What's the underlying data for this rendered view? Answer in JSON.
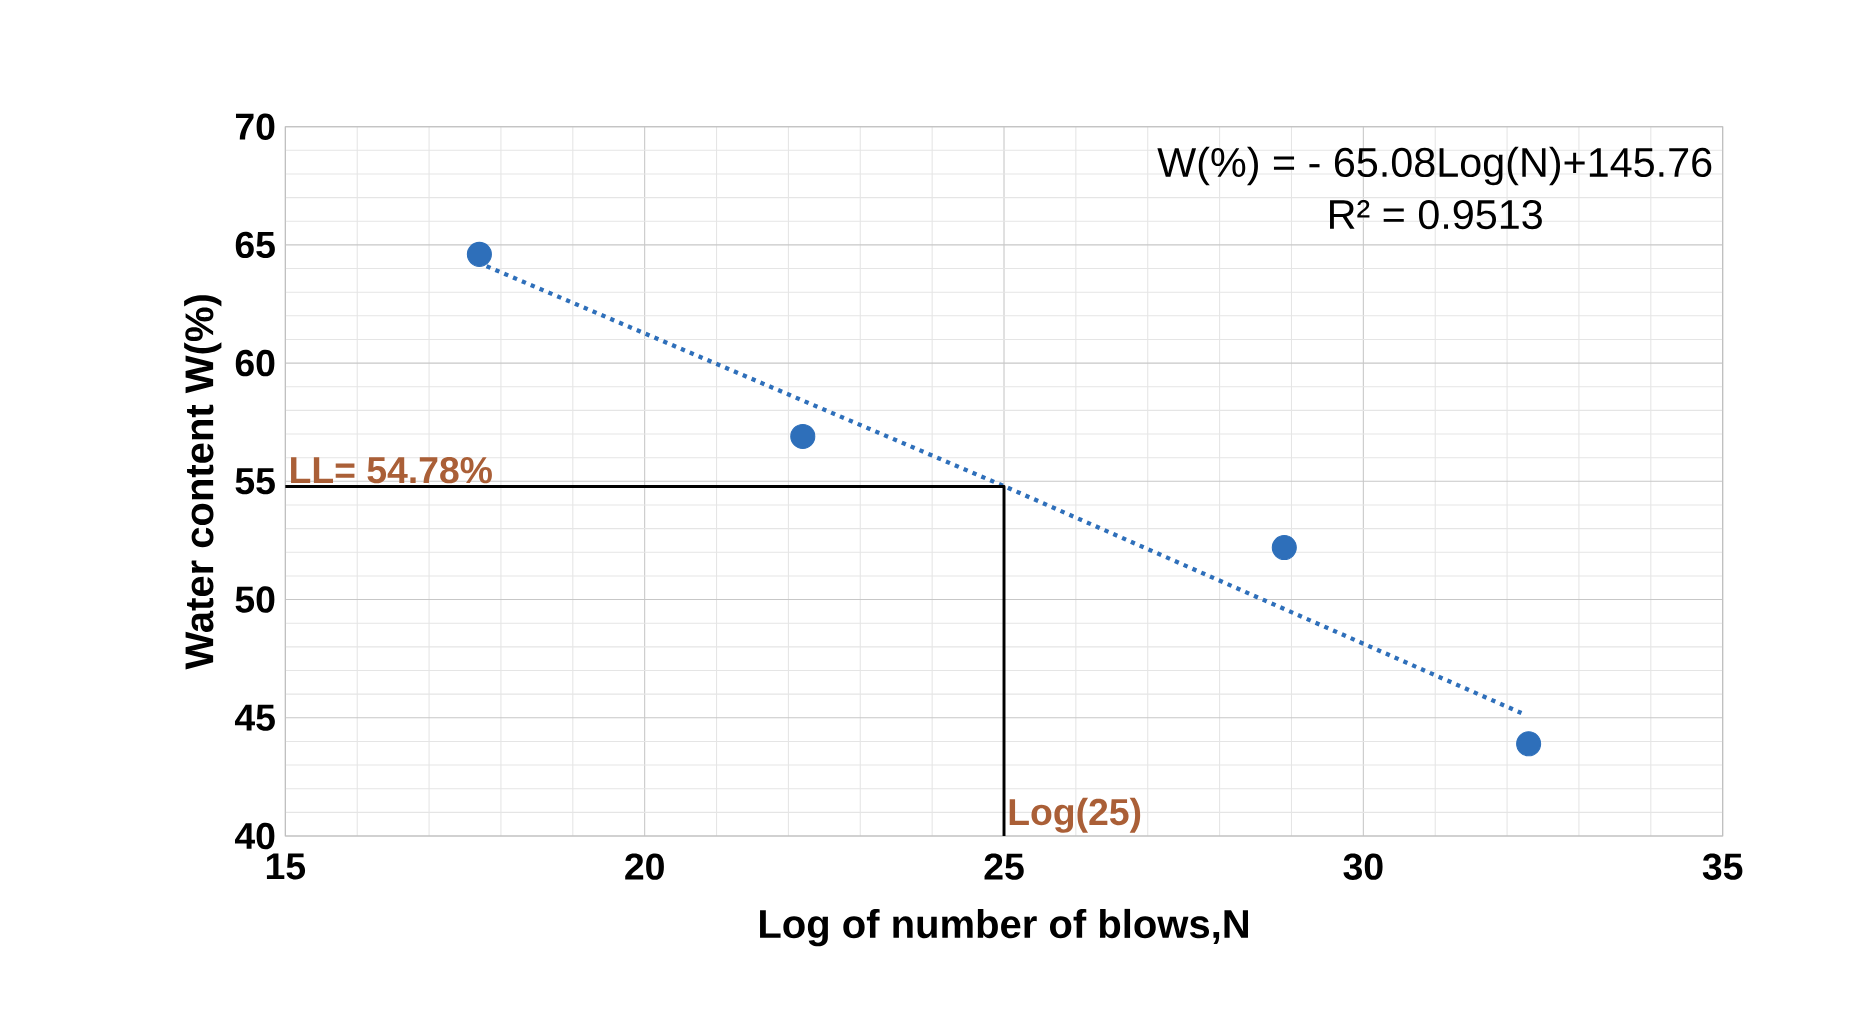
{
  "chart_data": {
    "type": "scatter",
    "xlabel": "Log of number of blows,N",
    "ylabel": "Water content  W(%)",
    "series": [
      {
        "color": "#2e6fba",
        "marker": "circle",
        "x": [
          17.7,
          22.2,
          28.9,
          32.3
        ],
        "values": [
          64.6,
          56.9,
          52.2,
          43.9
        ]
      },
      {
        "type": "line",
        "color": "#2e6fba",
        "line_style": "dotted",
        "marker": "none",
        "x": [
          17.8,
          25,
          32.2
        ],
        "values": [
          64.1,
          54.8,
          45.2
        ]
      },
      {
        "type": "line",
        "color": "#000000",
        "line_style": "solid",
        "marker": "none",
        "x": [
          15,
          25,
          25
        ],
        "values": [
          54.78,
          54.78,
          40
        ]
      }
    ],
    "xlim": [
      15,
      35
    ],
    "xticks": [
      15,
      20,
      25,
      30,
      35
    ],
    "ylim": [
      40,
      70
    ],
    "yticks": [
      40,
      45,
      50,
      55,
      60,
      65,
      70
    ],
    "grid": true,
    "annotations": [
      "W(%) = - 65.08Log(N)+145.76",
      "R² = 0.9513",
      {
        "text": "LL= 54.78%",
        "x": 15,
        "y": 54.78
      },
      {
        "text": "Log(25)",
        "x": 25,
        "y": 40
      }
    ]
  }
}
